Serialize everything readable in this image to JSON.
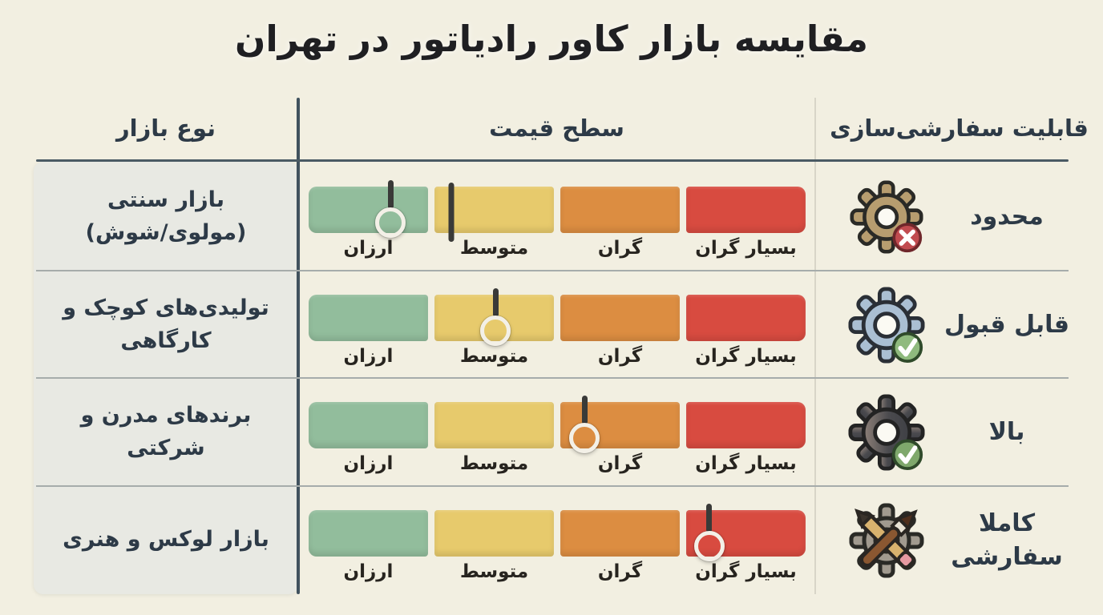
{
  "title": "مقایسه بازار کاور رادیاتور در تهران",
  "table": {
    "headers": {
      "market_type": "نوع بازار",
      "price_level": "سطح قیمت",
      "customization": "قابلیت سفارشی‌سازی"
    },
    "price_scale": [
      "ارزان",
      "متوسط",
      "گران",
      "بسیار گران"
    ],
    "rows": [
      {
        "market": "بازار سنتی\n(مولوی/شوش)",
        "price_level": "ارزان",
        "marker_percent": 16.5,
        "extra_tick_percent": 28.7,
        "customization": "محدود",
        "icon": "gear-x-icon"
      },
      {
        "market": "تولیدی‌های کوچک و کارگاهی",
        "price_level": "متوسط",
        "marker_percent": 37.6,
        "customization": "قابل قبول",
        "icon": "gear-check-blue-icon"
      },
      {
        "market": "برندهای مدرن و شرکتی",
        "price_level": "گران",
        "marker_percent": 55.5,
        "customization": "بالا",
        "icon": "gear-check-dark-icon"
      },
      {
        "market": "بازار لوکس و هنری",
        "price_level": "بسیار گران",
        "marker_percent": 80.6,
        "customization": "کاملا\nسفارشی",
        "icon": "gear-pencil-brush-icon"
      }
    ]
  },
  "colors": {
    "background": "#f2efe1",
    "left_panel": "#e8e9e3",
    "text_dark": "#2d3a47",
    "title_text": "#1f1f22",
    "segment_green": "#92bd9c",
    "segment_yellow": "#e7ca6c",
    "segment_orange": "#dc8d41",
    "segment_red": "#d84b40",
    "marker": "#3a3a38",
    "divider_dark": "#41525e",
    "divider_light": "#a6acab",
    "badge_red": "#c14b50",
    "badge_green": "#8fba7e"
  },
  "chart_data": {
    "type": "table",
    "title": "مقایسه بازار کاور رادیاتور در تهران",
    "columns": [
      "نوع بازار",
      "سطح قیمت",
      "قابلیت سفارشی‌سازی"
    ],
    "price_scale": [
      "ارزان",
      "متوسط",
      "گران",
      "بسیار گران"
    ],
    "rows": [
      {
        "market": "بازار سنتی (مولوی/شوش)",
        "price_level": "ارزان",
        "price_marker_percent": 16.5,
        "customization": "محدود"
      },
      {
        "market": "تولیدی‌های کوچک و کارگاهی",
        "price_level": "متوسط",
        "price_marker_percent": 37.6,
        "customization": "قابل قبول"
      },
      {
        "market": "برندهای مدرن و شرکتی",
        "price_level": "گران",
        "price_marker_percent": 55.5,
        "customization": "بالا"
      },
      {
        "market": "بازار لوکس و هنری",
        "price_level": "بسیار گران",
        "price_marker_percent": 80.6,
        "customization": "کاملا سفارشی"
      }
    ]
  }
}
